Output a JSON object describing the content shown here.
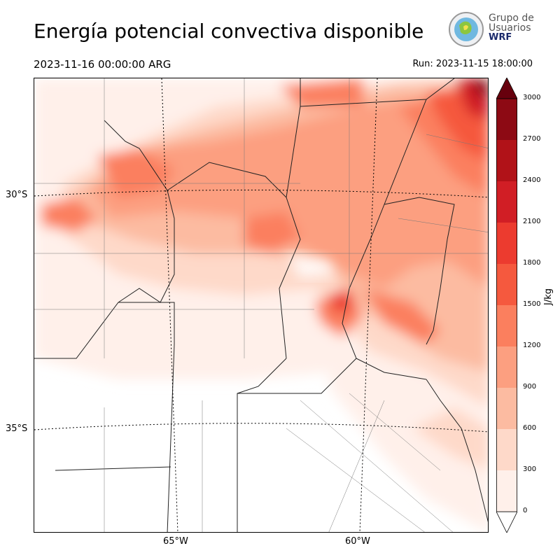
{
  "title": "Energía potencial convectiva disponible",
  "valid_time": "2023-11-16 00:00:00 ARG",
  "run_time": "Run: 2023-11-15 18:00:00",
  "logo": {
    "line1": "Grupo de",
    "line2": "Usuarios",
    "line3": "WRF"
  },
  "lat_labels": [
    "30°S",
    "35°S"
  ],
  "lon_labels": [
    "65°W",
    "60°W"
  ],
  "colorbar": {
    "label": "J/kg",
    "ticks": [
      "0",
      "300",
      "600",
      "900",
      "1200",
      "1500",
      "1800",
      "2100",
      "2400",
      "2700",
      "3000"
    ],
    "colors": [
      "#fff0ea",
      "#fed9c9",
      "#fcbba1",
      "#fc9f80",
      "#fb7f5e",
      "#f5593e",
      "#ec3b2f",
      "#d11e25",
      "#b11218",
      "#8d0a14"
    ],
    "over_color": "#67000d",
    "under_color": "#ffffff"
  }
}
